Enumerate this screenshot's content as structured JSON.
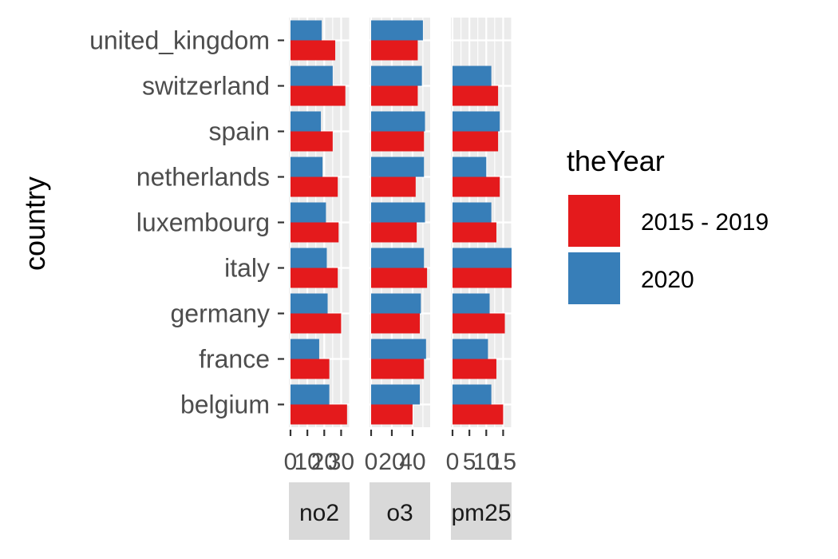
{
  "chart_data": {
    "type": "bar",
    "orientation": "horizontal",
    "facet_by": "pollutant",
    "ylabel": "country",
    "legend_title": "theYear",
    "legend_position": "right",
    "grid": true,
    "categories": [
      "belgium",
      "france",
      "germany",
      "italy",
      "luxembourg",
      "netherlands",
      "spain",
      "switzerland",
      "united_kingdom"
    ],
    "series_names": [
      "2015 - 2019",
      "2020"
    ],
    "colors": {
      "2015 - 2019": "#E41A1C",
      "2020": "#377EB8"
    },
    "facets": [
      {
        "label": "no2",
        "ticks": [
          "0",
          "10",
          "20",
          "30"
        ],
        "xlim": [
          0,
          35
        ],
        "series": [
          {
            "name": "2015 - 2019",
            "values": [
              33.5,
              23.0,
              30.0,
              28.0,
              28.5,
              28.0,
              25.0,
              32.5,
              26.5
            ]
          },
          {
            "name": "2020",
            "values": [
              23.0,
              17.0,
              22.0,
              21.5,
              21.0,
              19.0,
              18.0,
              25.0,
              18.5
            ]
          }
        ]
      },
      {
        "label": "o3",
        "ticks": [
          "0",
          "20",
          "40"
        ],
        "xlim": [
          0,
          57
        ],
        "series": [
          {
            "name": "2015 - 2019",
            "values": [
              40.0,
              51.0,
              47.0,
              54.0,
              44.0,
              43.0,
              51.0,
              45.0,
              45.0
            ]
          },
          {
            "name": "2020",
            "values": [
              47.0,
              53.0,
              48.0,
              51.0,
              52.0,
              51.0,
              52.0,
              49.0,
              50.0
            ]
          }
        ]
      },
      {
        "label": "pm25",
        "ticks": [
          "0",
          "5",
          "10",
          "15"
        ],
        "xlim": [
          0,
          17.5
        ],
        "series": [
          {
            "name": "2015 - 2019",
            "values": [
              15.0,
              13.0,
              15.5,
              19.0,
              13.0,
              14.0,
              13.5,
              13.5,
              0
            ]
          },
          {
            "name": "2020",
            "values": [
              11.5,
              10.5,
              11.0,
              17.5,
              11.5,
              10.0,
              14.0,
              11.5,
              0
            ]
          }
        ]
      }
    ]
  }
}
